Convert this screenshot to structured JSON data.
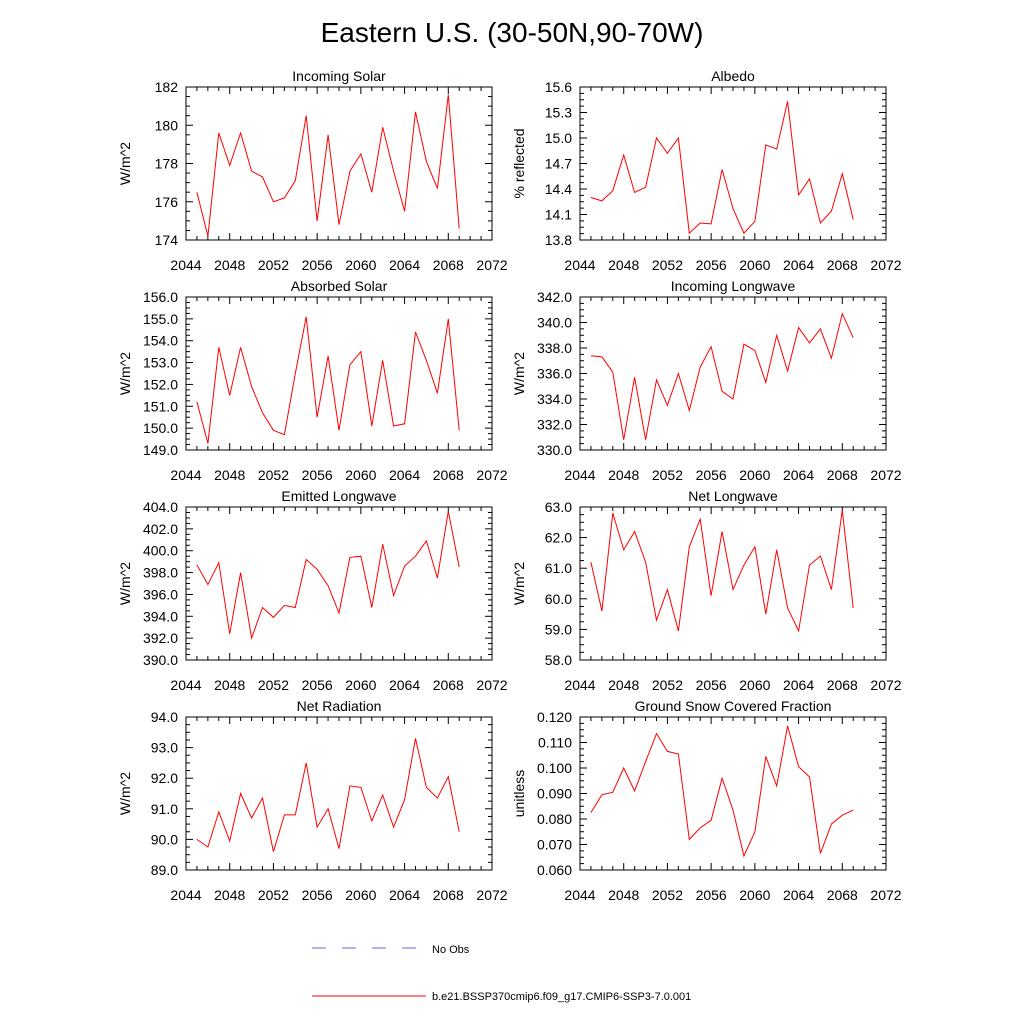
{
  "title": "Eastern U.S. (30-50N,90-70W)",
  "legend": {
    "placement": "bottom-center",
    "entries": [
      {
        "label": "No Obs",
        "color": "#6a6ad8",
        "style": "dashed"
      },
      {
        "label": "b.e21.BSSP370cmip6.f09_g17.CMIP6-SSP3-7.0.001",
        "color": "#ff0000",
        "style": "solid"
      }
    ]
  },
  "series_color": "#ff0000",
  "chart_data": [
    {
      "type": "line",
      "title": "Incoming Solar",
      "ylabel": "W/m^2",
      "xlim": [
        2044,
        2072
      ],
      "xticks": [
        "2044",
        "2048",
        "2052",
        "2056",
        "2060",
        "2064",
        "2068",
        "2072"
      ],
      "ylim": [
        174,
        182
      ],
      "yticks": [
        "174",
        "176",
        "178",
        "180",
        "182"
      ],
      "x": [
        2045,
        2046,
        2047,
        2048,
        2049,
        2050,
        2051,
        2052,
        2053,
        2054,
        2055,
        2056,
        2057,
        2058,
        2059,
        2060,
        2061,
        2062,
        2063,
        2064,
        2065,
        2066,
        2067,
        2068,
        2069
      ],
      "y": [
        176.5,
        174.2,
        179.6,
        177.9,
        179.6,
        177.6,
        177.3,
        176.0,
        176.2,
        177.1,
        180.5,
        175.0,
        179.5,
        174.8,
        177.6,
        178.5,
        176.5,
        179.9,
        177.6,
        175.5,
        180.7,
        178.1,
        176.7,
        181.6,
        174.6
      ]
    },
    {
      "type": "line",
      "title": "Albedo",
      "ylabel": "% reflected",
      "xlim": [
        2044,
        2072
      ],
      "xticks": [
        "2044",
        "2048",
        "2052",
        "2056",
        "2060",
        "2064",
        "2068",
        "2072"
      ],
      "ylim": [
        13.8,
        15.6
      ],
      "yticks": [
        "13.8",
        "14.1",
        "14.4",
        "14.7",
        "15.0",
        "15.3",
        "15.6"
      ],
      "x": [
        2045,
        2046,
        2047,
        2048,
        2049,
        2050,
        2051,
        2052,
        2053,
        2054,
        2055,
        2056,
        2057,
        2058,
        2059,
        2060,
        2061,
        2062,
        2063,
        2064,
        2065,
        2066,
        2067,
        2068,
        2069
      ],
      "y": [
        14.3,
        14.26,
        14.38,
        14.8,
        14.36,
        14.42,
        15.0,
        14.82,
        15.0,
        13.88,
        14.0,
        13.99,
        14.63,
        14.17,
        13.88,
        14.02,
        14.92,
        14.87,
        15.43,
        14.33,
        14.52,
        14.0,
        14.14,
        14.58,
        14.04
      ]
    },
    {
      "type": "line",
      "title": "Absorbed Solar",
      "ylabel": "W/m^2",
      "xlim": [
        2044,
        2072
      ],
      "xticks": [
        "2044",
        "2048",
        "2052",
        "2056",
        "2060",
        "2064",
        "2068",
        "2072"
      ],
      "ylim": [
        149.0,
        156.0
      ],
      "yticks": [
        "149.0",
        "150.0",
        "151.0",
        "152.0",
        "153.0",
        "154.0",
        "155.0",
        "156.0"
      ],
      "x": [
        2045,
        2046,
        2047,
        2048,
        2049,
        2050,
        2051,
        2052,
        2053,
        2054,
        2055,
        2056,
        2057,
        2058,
        2059,
        2060,
        2061,
        2062,
        2063,
        2064,
        2065,
        2066,
        2067,
        2068,
        2069
      ],
      "y": [
        151.2,
        149.3,
        153.7,
        151.5,
        153.7,
        151.9,
        150.7,
        149.9,
        149.7,
        152.5,
        155.1,
        150.5,
        153.3,
        149.9,
        152.9,
        153.5,
        150.1,
        153.1,
        150.1,
        150.2,
        154.4,
        153.1,
        151.6,
        155.0,
        149.9
      ]
    },
    {
      "type": "line",
      "title": "Incoming Longwave",
      "ylabel": "W/m^2",
      "xlim": [
        2044,
        2072
      ],
      "xticks": [
        "2044",
        "2048",
        "2052",
        "2056",
        "2060",
        "2064",
        "2068",
        "2072"
      ],
      "ylim": [
        330.0,
        342.0
      ],
      "yticks": [
        "330.0",
        "332.0",
        "334.0",
        "336.0",
        "338.0",
        "340.0",
        "342.0"
      ],
      "x": [
        2045,
        2046,
        2047,
        2048,
        2049,
        2050,
        2051,
        2052,
        2053,
        2054,
        2055,
        2056,
        2057,
        2058,
        2059,
        2060,
        2061,
        2062,
        2063,
        2064,
        2065,
        2066,
        2067,
        2068,
        2069
      ],
      "y": [
        337.4,
        337.3,
        336.1,
        330.8,
        335.7,
        330.8,
        335.5,
        333.5,
        336.0,
        333.1,
        336.5,
        338.1,
        334.6,
        334.0,
        338.3,
        337.8,
        335.3,
        339.0,
        336.2,
        339.6,
        338.4,
        339.5,
        337.2,
        340.7,
        338.8
      ]
    },
    {
      "type": "line",
      "title": "Emitted Longwave",
      "ylabel": "W/m^2",
      "xlim": [
        2044,
        2072
      ],
      "xticks": [
        "2044",
        "2048",
        "2052",
        "2056",
        "2060",
        "2064",
        "2068",
        "2072"
      ],
      "ylim": [
        390.0,
        404.0
      ],
      "yticks": [
        "390.0",
        "392.0",
        "394.0",
        "396.0",
        "398.0",
        "400.0",
        "402.0",
        "404.0"
      ],
      "x": [
        2045,
        2046,
        2047,
        2048,
        2049,
        2050,
        2051,
        2052,
        2053,
        2054,
        2055,
        2056,
        2057,
        2058,
        2059,
        2060,
        2061,
        2062,
        2063,
        2064,
        2065,
        2066,
        2067,
        2068,
        2069
      ],
      "y": [
        398.7,
        396.9,
        398.9,
        392.4,
        398.0,
        392.0,
        394.8,
        393.9,
        395.0,
        394.8,
        399.2,
        398.3,
        396.8,
        394.3,
        399.4,
        399.5,
        394.8,
        400.6,
        395.9,
        398.6,
        399.5,
        400.9,
        397.5,
        403.6,
        398.5
      ]
    },
    {
      "type": "line",
      "title": "Net Longwave",
      "ylabel": "W/m^2",
      "xlim": [
        2044,
        2072
      ],
      "xticks": [
        "2044",
        "2048",
        "2052",
        "2056",
        "2060",
        "2064",
        "2068",
        "2072"
      ],
      "ylim": [
        58.0,
        63.0
      ],
      "yticks": [
        "58.0",
        "59.0",
        "60.0",
        "61.0",
        "62.0",
        "63.0"
      ],
      "x": [
        2045,
        2046,
        2047,
        2048,
        2049,
        2050,
        2051,
        2052,
        2053,
        2054,
        2055,
        2056,
        2057,
        2058,
        2059,
        2060,
        2061,
        2062,
        2063,
        2064,
        2065,
        2066,
        2067,
        2068,
        2069
      ],
      "y": [
        61.2,
        59.6,
        62.8,
        61.6,
        62.2,
        61.2,
        59.3,
        60.3,
        58.95,
        61.7,
        62.6,
        60.1,
        62.2,
        60.3,
        61.1,
        61.7,
        59.5,
        61.6,
        59.7,
        58.95,
        61.1,
        61.4,
        60.3,
        62.9,
        59.7
      ]
    },
    {
      "type": "line",
      "title": "Net Radiation",
      "ylabel": "W/m^2",
      "xlim": [
        2044,
        2072
      ],
      "xticks": [
        "2044",
        "2048",
        "2052",
        "2056",
        "2060",
        "2064",
        "2068",
        "2072"
      ],
      "ylim": [
        89.0,
        94.0
      ],
      "yticks": [
        "89.0",
        "90.0",
        "91.0",
        "92.0",
        "93.0",
        "94.0"
      ],
      "x": [
        2045,
        2046,
        2047,
        2048,
        2049,
        2050,
        2051,
        2052,
        2053,
        2054,
        2055,
        2056,
        2057,
        2058,
        2059,
        2060,
        2061,
        2062,
        2063,
        2064,
        2065,
        2066,
        2067,
        2068,
        2069
      ],
      "y": [
        90.0,
        89.75,
        90.9,
        89.95,
        91.5,
        90.7,
        91.35,
        89.6,
        90.8,
        90.8,
        92.5,
        90.4,
        91.0,
        89.7,
        91.75,
        91.7,
        90.6,
        91.45,
        90.4,
        91.3,
        93.3,
        91.7,
        91.35,
        92.05,
        90.25
      ]
    },
    {
      "type": "line",
      "title": "Ground Snow Covered Fraction",
      "ylabel": "unitless",
      "xlim": [
        2044,
        2072
      ],
      "xticks": [
        "2044",
        "2048",
        "2052",
        "2056",
        "2060",
        "2064",
        "2068",
        "2072"
      ],
      "ylim": [
        0.06,
        0.12
      ],
      "yticks": [
        "0.060",
        "0.070",
        "0.080",
        "0.090",
        "0.100",
        "0.110",
        "0.120"
      ],
      "x": [
        2045,
        2046,
        2047,
        2048,
        2049,
        2050,
        2051,
        2052,
        2053,
        2054,
        2055,
        2056,
        2057,
        2058,
        2059,
        2060,
        2061,
        2062,
        2063,
        2064,
        2065,
        2066,
        2067,
        2068,
        2069
      ],
      "y": [
        0.0825,
        0.0895,
        0.0905,
        0.1,
        0.091,
        0.1025,
        0.1135,
        0.1065,
        0.1055,
        0.072,
        0.0765,
        0.0795,
        0.096,
        0.0835,
        0.0655,
        0.075,
        0.1045,
        0.093,
        0.1165,
        0.1005,
        0.0965,
        0.0665,
        0.078,
        0.0815,
        0.0835
      ]
    }
  ]
}
